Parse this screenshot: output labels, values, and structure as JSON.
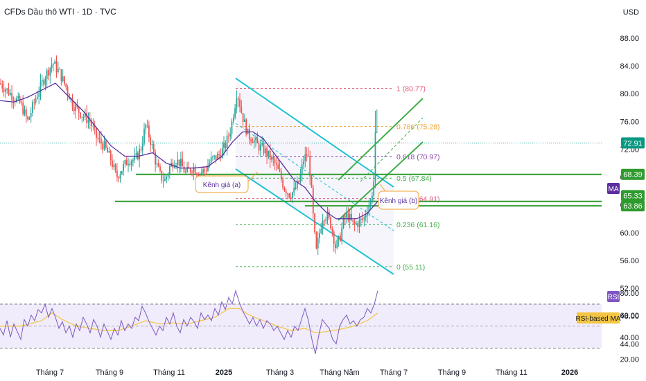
{
  "header": {
    "title": "CFDs Dầu thô WTI · 1D · TVC",
    "currency": "USD"
  },
  "colors": {
    "up": "#26a69a",
    "down": "#ef5350",
    "ma": "#5b2fa0",
    "channel": "#22c1d6",
    "support": "#2e9b2e",
    "rsi_line": "#7e57c2",
    "rsi_ma": "#f3c542",
    "rsi_band": "#f0ecfb"
  },
  "chart_data": [
    {
      "type": "candlestick",
      "y_axis": {
        "ticks": [
          "88.00",
          "84.00",
          "80.00",
          "76.00",
          "72.00",
          "68.00",
          "64.00",
          "60.00",
          "56.00",
          "52.00",
          "48.00",
          "44.00"
        ],
        "range": [
          42,
          90
        ]
      },
      "x_axis": {
        "ticks": [
          "Tháng 7",
          "Tháng 9",
          "Tháng 11",
          "2025",
          "Tháng 3",
          "Tháng Năm",
          "Tháng 7",
          "Tháng 9",
          "Tháng 11",
          "2026"
        ]
      },
      "price_path": [
        [
          0,
          81.5
        ],
        [
          15,
          80.0
        ],
        [
          30,
          78.5
        ],
        [
          40,
          76.0
        ],
        [
          52,
          79.5
        ],
        [
          65,
          82.5
        ],
        [
          76,
          84.5
        ],
        [
          86,
          83.0
        ],
        [
          95,
          81.0
        ],
        [
          105,
          78.5
        ],
        [
          118,
          77.0
        ],
        [
          130,
          76.0
        ],
        [
          140,
          73.5
        ],
        [
          150,
          72.5
        ],
        [
          160,
          70.5
        ],
        [
          168,
          68.0
        ],
        [
          175,
          69.0
        ],
        [
          185,
          70.5
        ],
        [
          195,
          70.5
        ],
        [
          203,
          72.0
        ],
        [
          210,
          75.5
        ],
        [
          218,
          73.0
        ],
        [
          225,
          70.0
        ],
        [
          232,
          68.0
        ],
        [
          238,
          67.5
        ],
        [
          245,
          69.5
        ],
        [
          252,
          70.5
        ],
        [
          260,
          70.0
        ],
        [
          268,
          68.5
        ],
        [
          278,
          69.5
        ],
        [
          288,
          68.5
        ],
        [
          296,
          69.0
        ],
        [
          305,
          70.5
        ],
        [
          315,
          71.0
        ],
        [
          325,
          72.5
        ],
        [
          333,
          75.0
        ],
        [
          339,
          78.5
        ],
        [
          342,
          80.5
        ],
        [
          348,
          77.5
        ],
        [
          352,
          76.0
        ],
        [
          358,
          74.0
        ],
        [
          365,
          73.5
        ],
        [
          372,
          72.5
        ],
        [
          380,
          72.0
        ],
        [
          388,
          71.0
        ],
        [
          396,
          70.0
        ],
        [
          403,
          68.5
        ],
        [
          410,
          66.5
        ],
        [
          418,
          65.5
        ],
        [
          425,
          66.0
        ],
        [
          432,
          67.5
        ],
        [
          438,
          70.5
        ],
        [
          444,
          71.5
        ],
        [
          448,
          68.0
        ],
        [
          452,
          62.0
        ],
        [
          456,
          57.0
        ],
        [
          460,
          59.5
        ],
        [
          466,
          62.5
        ],
        [
          472,
          62.5
        ],
        [
          478,
          61.0
        ],
        [
          484,
          58.0
        ],
        [
          490,
          59.0
        ],
        [
          496,
          62.0
        ],
        [
          502,
          62.5
        ],
        [
          510,
          61.0
        ],
        [
          518,
          61.5
        ],
        [
          525,
          62.0
        ],
        [
          530,
          63.5
        ],
        [
          535,
          64.5
        ],
        [
          540,
          68.0
        ],
        [
          545,
          74.5
        ]
      ],
      "moving_average": {
        "label": "MA",
        "path": [
          [
            0,
            79.0
          ],
          [
            20,
            78.8
          ],
          [
            40,
            79.5
          ],
          [
            60,
            80.5
          ],
          [
            80,
            81.5
          ],
          [
            100,
            79.5
          ],
          [
            120,
            77.5
          ],
          [
            140,
            75.0
          ],
          [
            160,
            72.5
          ],
          [
            180,
            71.0
          ],
          [
            200,
            71.0
          ],
          [
            220,
            71.5
          ],
          [
            240,
            70.0
          ],
          [
            260,
            69.3
          ],
          [
            280,
            69.3
          ],
          [
            300,
            69.5
          ],
          [
            320,
            71.0
          ],
          [
            335,
            73.0
          ],
          [
            350,
            74.5
          ],
          [
            365,
            74.5
          ],
          [
            380,
            73.5
          ],
          [
            395,
            71.5
          ],
          [
            410,
            69.5
          ],
          [
            425,
            67.5
          ],
          [
            440,
            66.5
          ],
          [
            455,
            64.5
          ],
          [
            470,
            63.0
          ],
          [
            485,
            62.0
          ],
          [
            500,
            62.0
          ],
          [
            515,
            62.0
          ],
          [
            530,
            62.8
          ],
          [
            545,
            64.5
          ]
        ]
      },
      "current_price": "72.91",
      "level_badges": [
        "68.39",
        "65.33",
        "63.86"
      ],
      "fibonacci": [
        {
          "label": "1 (80.77)",
          "price": 80.77,
          "color": "#e05a76"
        },
        {
          "label": "0.786 (75.28)",
          "price": 75.28,
          "color": "#f0a030"
        },
        {
          "label": "0.618 (70.97)",
          "price": 70.97,
          "color": "#8e44ad"
        },
        {
          "label": "0.5 (67.84)",
          "price": 67.84,
          "color": "#3fae4a"
        },
        {
          "label": "0.382 (64.91)",
          "price": 64.91,
          "color": "#e05a76"
        },
        {
          "label": "0.236 (61.16)",
          "price": 61.16,
          "color": "#3fae4a"
        },
        {
          "label": "0 (55.11)",
          "price": 55.11,
          "color": "#3fae4a"
        }
      ],
      "support_lines": [
        68.39,
        65.33,
        63.86,
        64.2
      ],
      "annotations": [
        {
          "text": "Kênh giá (a)"
        },
        {
          "text": "Kênh giá (b)"
        }
      ]
    },
    {
      "type": "line",
      "indicator": "RSI",
      "y_axis": {
        "ticks": [
          "80.00",
          "60.00",
          "40.00",
          "20.00"
        ],
        "range": [
          15,
          85
        ]
      },
      "bands": [
        70,
        30
      ],
      "rsi_path": [
        [
          0,
          48
        ],
        [
          5,
          42
        ],
        [
          10,
          55
        ],
        [
          15,
          40
        ],
        [
          20,
          52
        ],
        [
          25,
          45
        ],
        [
          30,
          38
        ],
        [
          35,
          56
        ],
        [
          40,
          50
        ],
        [
          45,
          60
        ],
        [
          50,
          55
        ],
        [
          55,
          65
        ],
        [
          60,
          62
        ],
        [
          65,
          70
        ],
        [
          70,
          58
        ],
        [
          75,
          66
        ],
        [
          80,
          58
        ],
        [
          85,
          48
        ],
        [
          90,
          54
        ],
        [
          95,
          44
        ],
        [
          100,
          50
        ],
        [
          105,
          40
        ],
        [
          110,
          52
        ],
        [
          115,
          46
        ],
        [
          120,
          58
        ],
        [
          125,
          52
        ],
        [
          130,
          44
        ],
        [
          135,
          56
        ],
        [
          140,
          50
        ],
        [
          145,
          40
        ],
        [
          150,
          52
        ],
        [
          155,
          45
        ],
        [
          160,
          38
        ],
        [
          165,
          48
        ],
        [
          170,
          42
        ],
        [
          175,
          55
        ],
        [
          180,
          46
        ],
        [
          185,
          52
        ],
        [
          190,
          48
        ],
        [
          195,
          58
        ],
        [
          200,
          55
        ],
        [
          205,
          68
        ],
        [
          210,
          62
        ],
        [
          215,
          54
        ],
        [
          220,
          48
        ],
        [
          225,
          42
        ],
        [
          230,
          50
        ],
        [
          235,
          46
        ],
        [
          240,
          58
        ],
        [
          245,
          52
        ],
        [
          250,
          62
        ],
        [
          255,
          50
        ],
        [
          260,
          44
        ],
        [
          265,
          56
        ],
        [
          270,
          50
        ],
        [
          275,
          58
        ],
        [
          280,
          54
        ],
        [
          285,
          48
        ],
        [
          290,
          62
        ],
        [
          295,
          56
        ],
        [
          300,
          60
        ],
        [
          305,
          55
        ],
        [
          310,
          66
        ],
        [
          315,
          60
        ],
        [
          320,
          72
        ],
        [
          325,
          65
        ],
        [
          330,
          76
        ],
        [
          335,
          70
        ],
        [
          340,
          82
        ],
        [
          345,
          72
        ],
        [
          350,
          64
        ],
        [
          355,
          58
        ],
        [
          360,
          52
        ],
        [
          365,
          58
        ],
        [
          370,
          50
        ],
        [
          375,
          56
        ],
        [
          380,
          48
        ],
        [
          385,
          55
        ],
        [
          390,
          52
        ],
        [
          395,
          46
        ],
        [
          400,
          50
        ],
        [
          405,
          44
        ],
        [
          410,
          38
        ],
        [
          415,
          46
        ],
        [
          420,
          40
        ],
        [
          425,
          50
        ],
        [
          430,
          46
        ],
        [
          435,
          56
        ],
        [
          440,
          66
        ],
        [
          445,
          55
        ],
        [
          450,
          38
        ],
        [
          455,
          25
        ],
        [
          460,
          42
        ],
        [
          465,
          56
        ],
        [
          470,
          52
        ],
        [
          475,
          48
        ],
        [
          480,
          38
        ],
        [
          485,
          34
        ],
        [
          490,
          50
        ],
        [
          495,
          56
        ],
        [
          500,
          60
        ],
        [
          505,
          52
        ],
        [
          510,
          55
        ],
        [
          515,
          50
        ],
        [
          520,
          56
        ],
        [
          525,
          58
        ],
        [
          530,
          66
        ],
        [
          535,
          62
        ],
        [
          540,
          70
        ],
        [
          545,
          82
        ]
      ],
      "rsi_ma_path": [
        [
          0,
          50
        ],
        [
          30,
          50
        ],
        [
          60,
          55
        ],
        [
          75,
          62
        ],
        [
          90,
          56
        ],
        [
          110,
          50
        ],
        [
          130,
          48
        ],
        [
          150,
          46
        ],
        [
          170,
          46
        ],
        [
          190,
          50
        ],
        [
          210,
          55
        ],
        [
          230,
          52
        ],
        [
          250,
          53
        ],
        [
          270,
          52
        ],
        [
          290,
          55
        ],
        [
          310,
          58
        ],
        [
          330,
          66
        ],
        [
          345,
          66
        ],
        [
          360,
          60
        ],
        [
          380,
          55
        ],
        [
          400,
          50
        ],
        [
          420,
          46
        ],
        [
          440,
          48
        ],
        [
          455,
          44
        ],
        [
          470,
          45
        ],
        [
          490,
          47
        ],
        [
          510,
          50
        ],
        [
          530,
          55
        ],
        [
          545,
          62
        ]
      ],
      "badges": [
        {
          "label": "RSI"
        },
        {
          "label": "RSI-based MA"
        }
      ]
    }
  ]
}
